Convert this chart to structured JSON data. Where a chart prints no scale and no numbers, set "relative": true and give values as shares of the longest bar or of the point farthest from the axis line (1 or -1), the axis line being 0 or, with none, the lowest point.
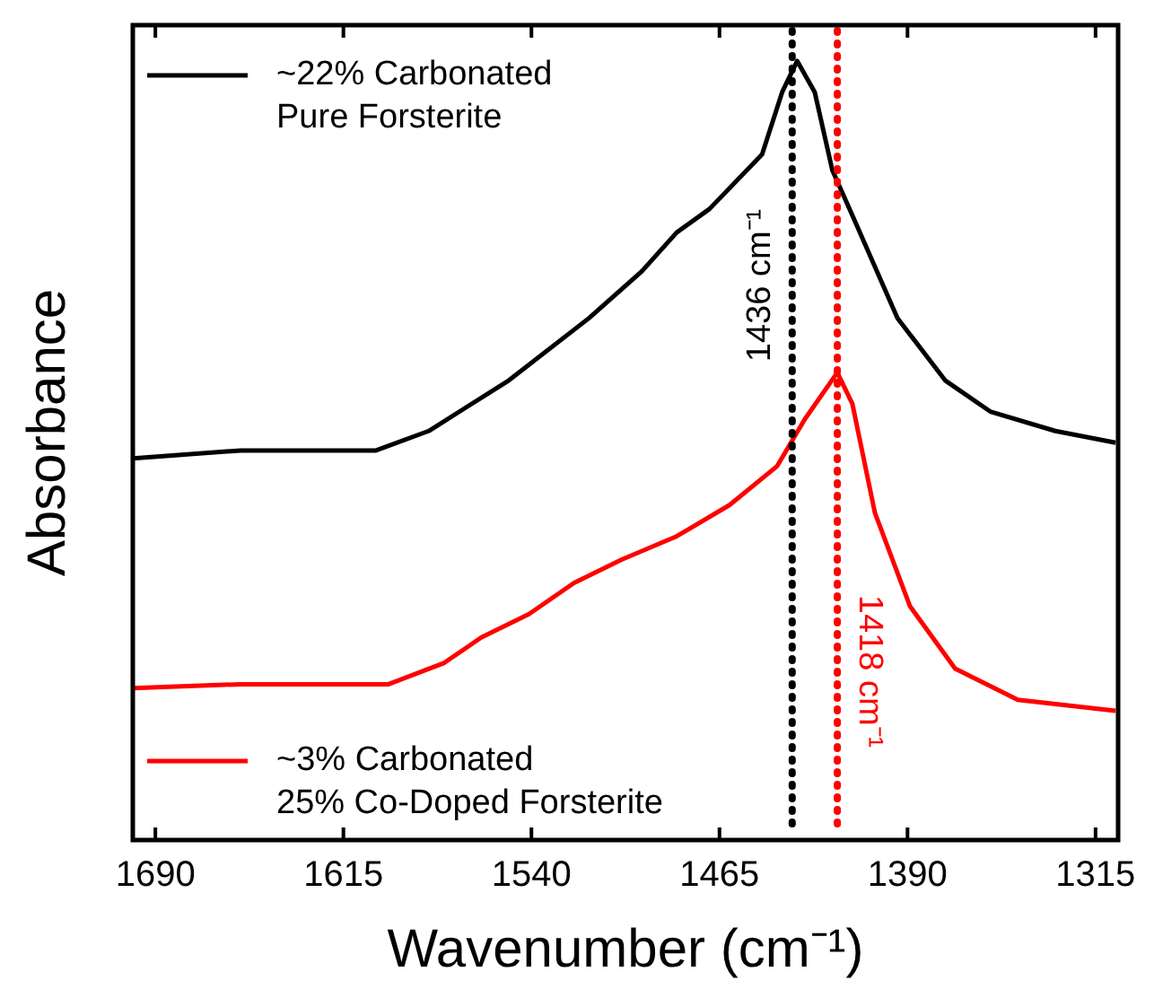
{
  "chart_data": {
    "type": "line",
    "relative": true,
    "xlabel": "Wavenumber (cm⁻¹)",
    "ylabel": "Absorbance",
    "xlim": [
      1699,
      1306
    ],
    "xticks": [
      1690,
      1615,
      1540,
      1465,
      1390,
      1315
    ],
    "legend": "left",
    "grid": false,
    "marker": "none",
    "line_style": "solid",
    "series": [
      {
        "name": "~22% Carbonated\nPure Forsterite",
        "color": "#000000",
        "x": [
          1699,
          1656,
          1602,
          1581,
          1549,
          1517,
          1496,
          1482,
          1469,
          1448,
          1440,
          1434,
          1427,
          1420,
          1409,
          1394,
          1375,
          1357,
          1331,
          1307
        ],
        "values": [
          0.49,
          0.5,
          0.5,
          0.525,
          0.59,
          0.67,
          0.73,
          0.78,
          0.81,
          0.88,
          0.96,
          1,
          0.96,
          0.86,
          0.78,
          0.67,
          0.59,
          0.55,
          0.525,
          0.51
        ]
      },
      {
        "name": "~3% Carbonated\n25% Co-Doped Forsterite",
        "color": "#ff0000",
        "x": [
          1699,
          1656,
          1597,
          1575,
          1560,
          1541,
          1523,
          1504,
          1482,
          1461,
          1442,
          1431,
          1418,
          1412,
          1403,
          1389,
          1371,
          1346,
          1307
        ],
        "values": [
          0.195,
          0.2,
          0.2,
          0.227,
          0.26,
          0.29,
          0.33,
          0.36,
          0.39,
          0.43,
          0.48,
          0.54,
          0.6,
          0.56,
          0.42,
          0.3,
          0.22,
          0.18,
          0.166
        ]
      }
    ],
    "ref_lines": [
      {
        "axis": "x",
        "value": 1436,
        "label": "1436 cm⁻¹",
        "color": "#000000",
        "line_style": "dotted"
      },
      {
        "axis": "x",
        "value": 1418,
        "label": "1418 cm⁻¹",
        "color": "#ff0000",
        "line_style": "dotted"
      }
    ]
  }
}
